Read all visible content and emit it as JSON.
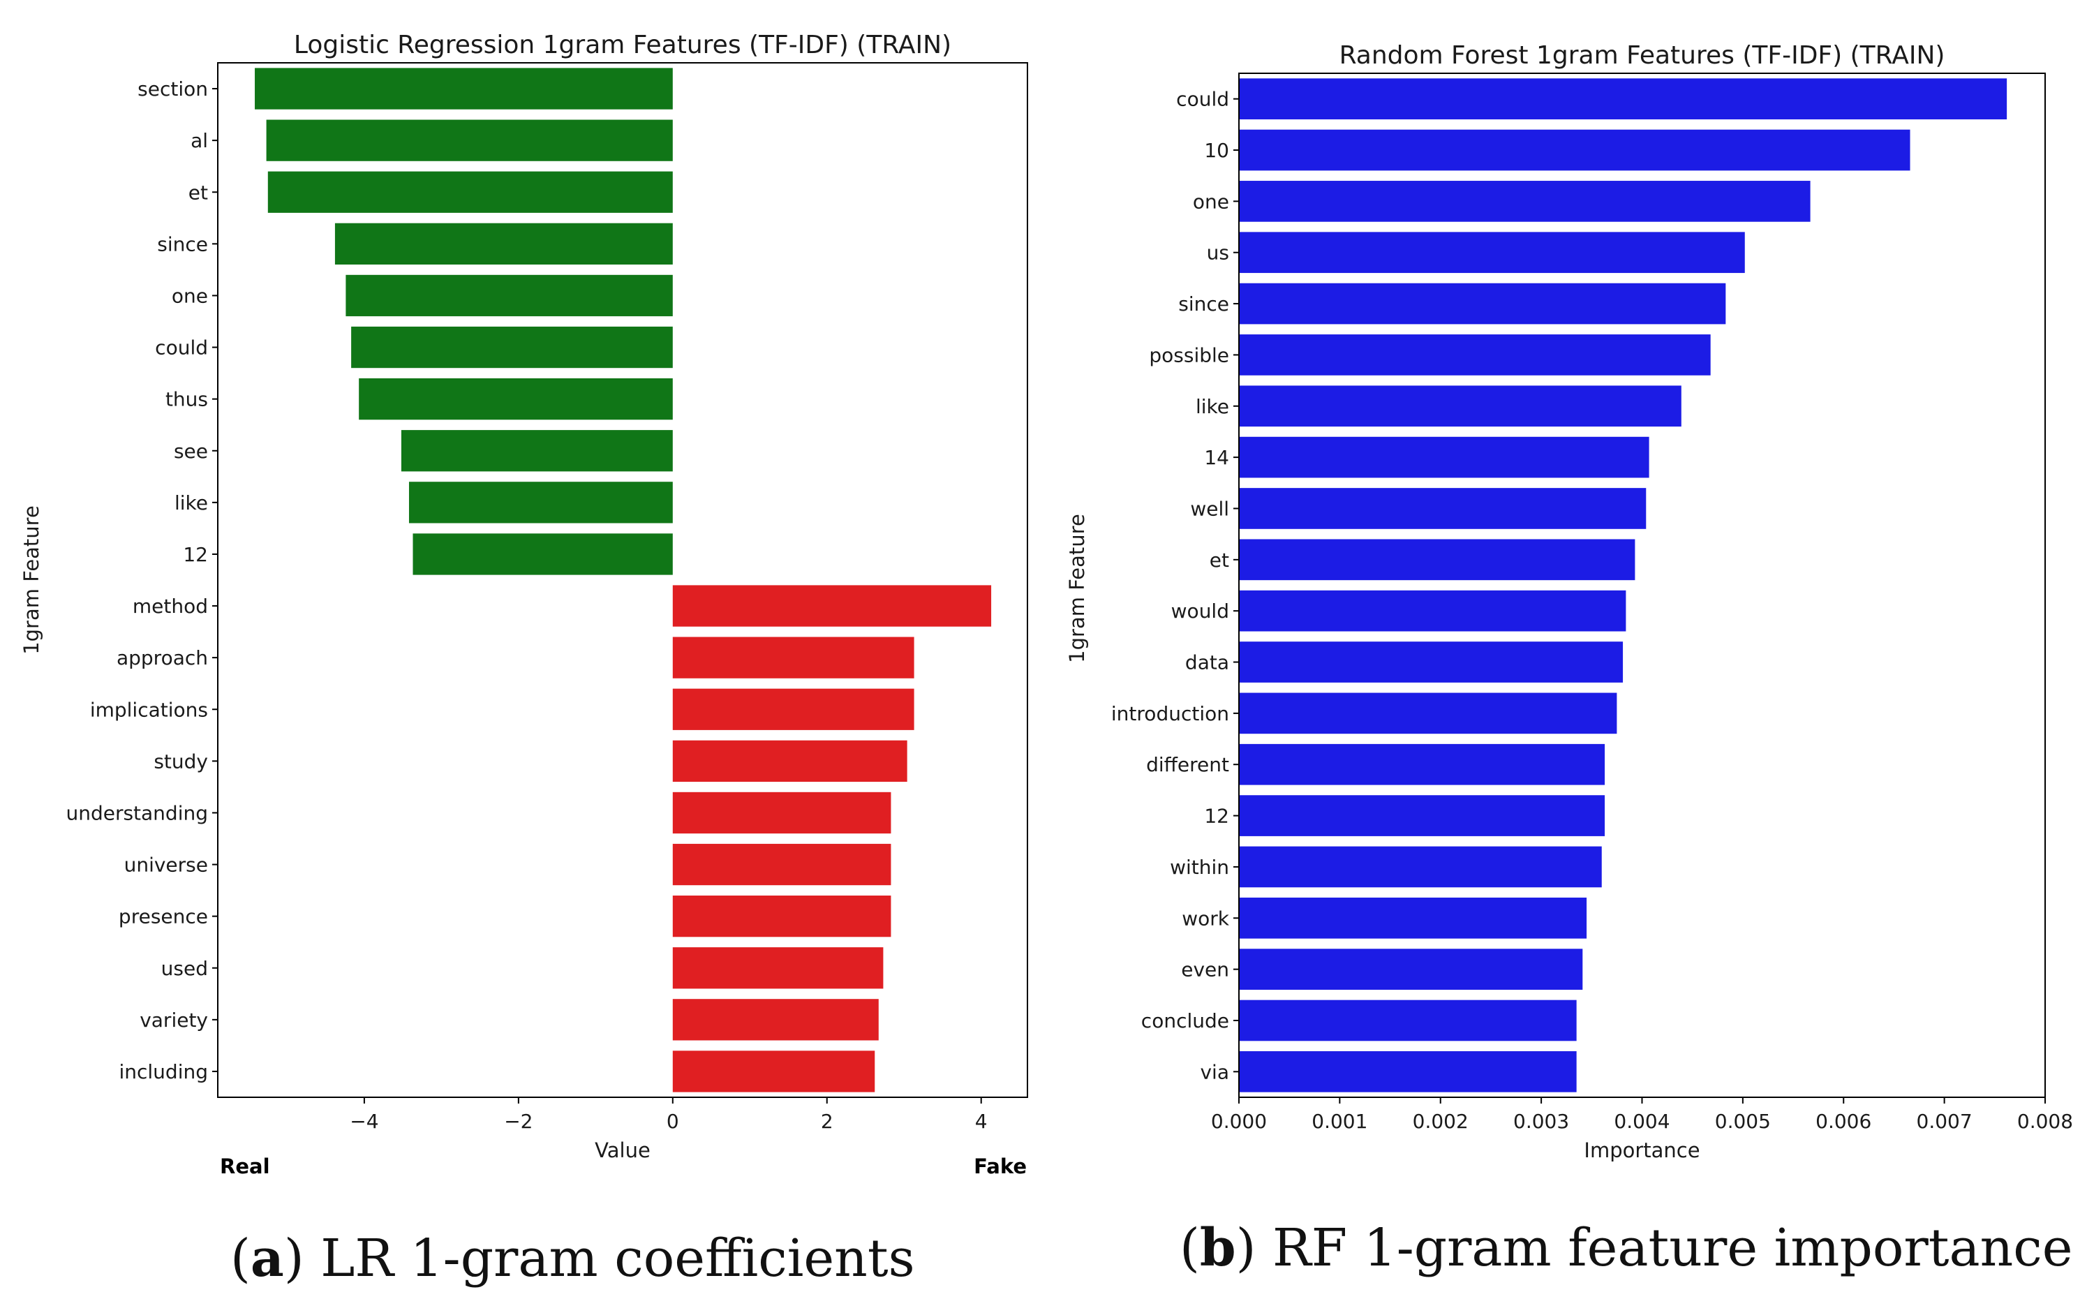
{
  "chart_data": [
    {
      "type": "bar",
      "orientation": "horizontal",
      "title": "Logistic Regression 1gram Features (TF-IDF) (TRAIN)",
      "xlabel": "Value",
      "ylabel": "1gram Feature",
      "xlim": [
        -5.9,
        4.6
      ],
      "xticks": [
        -4,
        -2,
        0,
        2,
        4
      ],
      "xtick_labels": [
        "−4",
        "−2",
        "0",
        "2",
        "4"
      ],
      "grid": false,
      "left_annotation": "Real",
      "right_annotation": "Fake",
      "categories": [
        "section",
        "al",
        "et",
        "since",
        "one",
        "could",
        "thus",
        "see",
        "like",
        "12",
        "method",
        "approach",
        "implications",
        "study",
        "understanding",
        "universe",
        "presence",
        "used",
        "variety",
        "including"
      ],
      "values": [
        -5.42,
        -5.27,
        -5.25,
        -4.38,
        -4.24,
        -4.17,
        -4.07,
        -3.52,
        -3.42,
        -3.37,
        4.13,
        3.13,
        3.13,
        3.04,
        2.83,
        2.83,
        2.83,
        2.73,
        2.67,
        2.62
      ],
      "colors": {
        "negative": "#107617",
        "positive": "#e01f22"
      }
    },
    {
      "type": "bar",
      "orientation": "horizontal",
      "title": "Random Forest 1gram Features (TF-IDF) (TRAIN)",
      "xlabel": "Importance",
      "ylabel": "1gram Feature",
      "xlim": [
        0,
        0.008
      ],
      "xticks": [
        0,
        0.001,
        0.002,
        0.003,
        0.004,
        0.005,
        0.006,
        0.007,
        0.008
      ],
      "xtick_labels": [
        "0.000",
        "0.001",
        "0.002",
        "0.003",
        "0.004",
        "0.005",
        "0.006",
        "0.007",
        "0.008"
      ],
      "grid": false,
      "categories": [
        "could",
        "10",
        "one",
        "us",
        "since",
        "possible",
        "like",
        "14",
        "well",
        "et",
        "would",
        "data",
        "introduction",
        "different",
        "12",
        "within",
        "work",
        "even",
        "conclude",
        "via"
      ],
      "values": [
        0.00762,
        0.00666,
        0.00567,
        0.00502,
        0.00483,
        0.00468,
        0.00439,
        0.00407,
        0.00404,
        0.00393,
        0.00384,
        0.00381,
        0.00375,
        0.00363,
        0.00363,
        0.0036,
        0.00345,
        0.00341,
        0.00335,
        0.00335
      ],
      "colors": {
        "bar": "#1c1ce5"
      }
    }
  ],
  "captions": {
    "a_label": "a",
    "a_text": " LR 1-gram coefficients",
    "b_label": "b",
    "b_text": " RF 1-gram feature importance"
  }
}
